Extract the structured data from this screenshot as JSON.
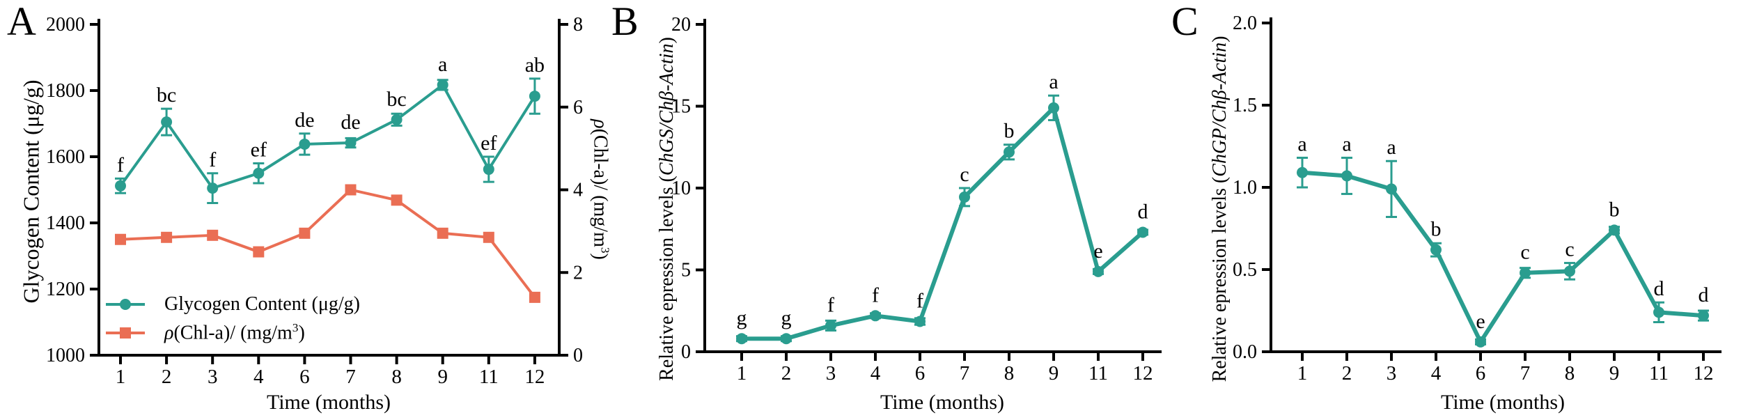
{
  "figure_background": "#ffffff",
  "colors": {
    "teal": "#2a9d8f",
    "orange": "#ea6e54",
    "axis": "#000000",
    "text": "#000000"
  },
  "chart_data": [
    {
      "id": "A",
      "letter": "A",
      "type": "line",
      "categories": [
        "1",
        "2",
        "3",
        "4",
        "6",
        "7",
        "8",
        "9",
        "11",
        "12"
      ],
      "x_axis": {
        "title": "Time (months)"
      },
      "left_axis": {
        "title": "Glycogen Content (μg/g)",
        "min": 1000,
        "max": 2000,
        "tick_labels": [
          "1000",
          "1200",
          "1400",
          "1600",
          "1800",
          "2000"
        ]
      },
      "right_axis": {
        "title": "ρ(Chl-a)/ (mg/m³)",
        "title_italic": "ρ",
        "title_mid": "(Chl-a)/ (mg/m",
        "title_sup": "3",
        "title_end": ")",
        "min": 0,
        "max": 8,
        "tick_labels": [
          "0",
          "2",
          "4",
          "6",
          "8"
        ]
      },
      "series": [
        {
          "name": "ρ(Chl-a)/ (mg/m³)",
          "axis": "right",
          "marker": "square",
          "color": "#ea6e54",
          "line_width": 4,
          "values": [
            2.8,
            2.85,
            2.9,
            2.5,
            2.95,
            4.0,
            3.75,
            2.95,
            2.85,
            1.4
          ],
          "errors": null,
          "point_labels": null
        },
        {
          "name": "Glycogen Content (μg/g)",
          "axis": "left",
          "marker": "circle",
          "color": "#2a9d8f",
          "line_width": 4,
          "values": [
            1512,
            1705,
            1505,
            1550,
            1638,
            1642,
            1712,
            1817,
            1562,
            1783
          ],
          "errors": [
            22,
            40,
            45,
            30,
            32,
            14,
            18,
            15,
            38,
            53
          ],
          "point_labels": [
            "f",
            "bc",
            "f",
            "ef",
            "de",
            "de",
            "bc",
            "a",
            "ef",
            "ab"
          ]
        }
      ],
      "legend": {
        "item1": "Glycogen Content (μg/g)",
        "item2_italic": "ρ",
        "item2_mid": "(Chl-a)/ (mg/m",
        "item2_sup": "3",
        "item2_end": ")"
      }
    },
    {
      "id": "B",
      "letter": "B",
      "type": "line",
      "categories": [
        "1",
        "2",
        "3",
        "4",
        "6",
        "7",
        "8",
        "9",
        "11",
        "12"
      ],
      "x_axis": {
        "title": "Time (months)"
      },
      "left_axis": {
        "title": "Relative epression levels (ChGS/Chβ-Actin)",
        "title_prefix": "Relative epression levels (",
        "title_italic": "ChGS/Chβ-Actin",
        "title_end": ")",
        "min": 0,
        "max": 20,
        "tick_labels": [
          "0",
          "5",
          "10",
          "15",
          "20"
        ]
      },
      "series": [
        {
          "name": "ChGS/Chβ-Actin relative expression",
          "axis": "left",
          "marker": "circle",
          "color": "#2a9d8f",
          "line_width": 6,
          "values": [
            0.8,
            0.8,
            1.6,
            2.2,
            1.85,
            9.45,
            12.2,
            14.9,
            4.9,
            7.3
          ],
          "errors": [
            0.15,
            0.15,
            0.3,
            0.15,
            0.2,
            0.55,
            0.45,
            0.75,
            0.15,
            0.15
          ],
          "point_labels": [
            "g",
            "g",
            "f",
            "f",
            "f",
            "c",
            "b",
            "a",
            "e",
            "d"
          ]
        }
      ]
    },
    {
      "id": "C",
      "letter": "C",
      "type": "line",
      "categories": [
        "1",
        "2",
        "3",
        "4",
        "6",
        "7",
        "8",
        "9",
        "11",
        "12"
      ],
      "x_axis": {
        "title": "Time (months)"
      },
      "left_axis": {
        "title": "Relative epression levels (ChGP/Chβ-Actin)",
        "title_prefix": "Relative epression levels (",
        "title_italic": "ChGP/Chβ-Actin",
        "title_end": ")",
        "min": 0,
        "max": 2,
        "tick_labels": [
          "0.0",
          "0.5",
          "1.0",
          "1.5",
          "2.0"
        ]
      },
      "series": [
        {
          "name": "ChGP/Chβ-Actin relative expression",
          "axis": "left",
          "marker": "circle",
          "color": "#2a9d8f",
          "line_width": 6,
          "values": [
            1.09,
            1.07,
            0.99,
            0.62,
            0.06,
            0.48,
            0.49,
            0.74,
            0.24,
            0.22
          ],
          "errors": [
            0.09,
            0.11,
            0.17,
            0.04,
            0.015,
            0.03,
            0.05,
            0.02,
            0.06,
            0.03
          ],
          "point_labels": [
            "a",
            "a",
            "a",
            "b",
            "e",
            "c",
            "c",
            "b",
            "d",
            "d"
          ]
        }
      ]
    }
  ]
}
